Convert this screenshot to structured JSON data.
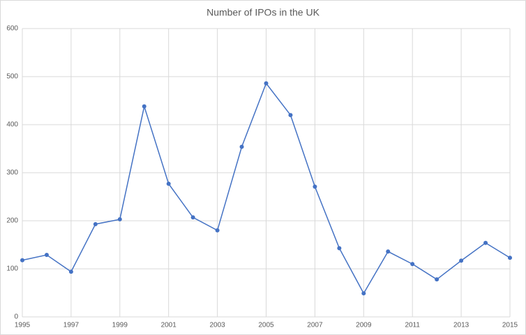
{
  "chart_data": {
    "type": "line",
    "title": "Number of IPOs in the UK",
    "x": [
      1995,
      1996,
      1997,
      1998,
      1999,
      2000,
      2001,
      2002,
      2003,
      2004,
      2005,
      2006,
      2007,
      2008,
      2009,
      2010,
      2011,
      2012,
      2013,
      2014,
      2015
    ],
    "series": [
      {
        "name": "IPOs",
        "color": "#4472c4",
        "values": [
          118,
          129,
          94,
          193,
          203,
          438,
          277,
          207,
          180,
          354,
          486,
          420,
          271,
          143,
          49,
          136,
          110,
          78,
          117,
          154,
          123
        ]
      }
    ],
    "xlim": [
      1995,
      2015
    ],
    "xticks": [
      1995,
      1997,
      1999,
      2001,
      2003,
      2005,
      2007,
      2009,
      2011,
      2013,
      2015
    ],
    "ylim": [
      0,
      600
    ],
    "yticks": [
      0,
      100,
      200,
      300,
      400,
      500,
      600
    ],
    "grid": true
  }
}
